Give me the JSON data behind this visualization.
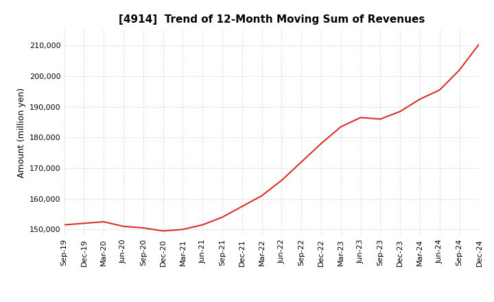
{
  "title": "[4914]  Trend of 12-Month Moving Sum of Revenues",
  "ylabel": "Amount (million yen)",
  "title_fontsize": 11,
  "label_fontsize": 9,
  "tick_fontsize": 8,
  "line_color": "#d93025",
  "background_color": "#ffffff",
  "plot_bg_color": "#ffffff",
  "grid_color": "#cccccc",
  "ylim": [
    148000,
    215000
  ],
  "yticks": [
    150000,
    160000,
    170000,
    180000,
    190000,
    200000,
    210000
  ],
  "x_labels": [
    "Sep-19",
    "Dec-19",
    "Mar-20",
    "Jun-20",
    "Sep-20",
    "Dec-20",
    "Mar-21",
    "Jun-21",
    "Sep-21",
    "Dec-21",
    "Mar-22",
    "Jun-22",
    "Sep-22",
    "Dec-22",
    "Mar-23",
    "Jun-23",
    "Sep-23",
    "Dec-23",
    "Mar-24",
    "Jun-24",
    "Sep-24",
    "Dec-24"
  ],
  "values": [
    151500,
    152000,
    152500,
    151000,
    150500,
    149500,
    150000,
    151500,
    154000,
    157500,
    161000,
    166000,
    172000,
    178000,
    183500,
    186500,
    186000,
    188500,
    192500,
    195500,
    202000,
    210500
  ]
}
